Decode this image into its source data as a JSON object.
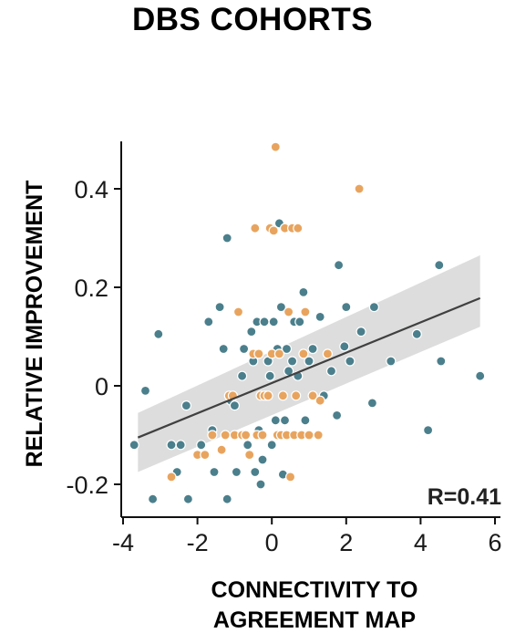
{
  "chart_data": {
    "type": "scatter",
    "title": "DBS COHORTS",
    "xlabel_lines": [
      "CONNECTIVITY TO",
      "AGREEMENT MAP"
    ],
    "ylabel": "RELATIVE IMPROVEMENT",
    "annotation": "R=0.41",
    "xlim": [
      -4,
      6
    ],
    "ylim": [
      -0.25,
      0.5
    ],
    "xticks": [
      -4,
      -2,
      0,
      2,
      4,
      6
    ],
    "yticks": [
      -0.2,
      0,
      0.2,
      0.4
    ],
    "ytick_labels": [
      "-0.2",
      "0",
      "0.2",
      "0.4"
    ],
    "grid": false,
    "colors": {
      "teal": "#4b7f8c",
      "orange": "#e8a45e",
      "fit_line": "#404040",
      "band": "#d9d9d9"
    },
    "fit": {
      "x": [
        -3.6,
        5.6
      ],
      "y": [
        -0.105,
        0.178
      ],
      "band_upper": [
        -0.055,
        0.265
      ],
      "band_lower": [
        -0.175,
        0.12
      ]
    },
    "series": [
      {
        "color": "teal",
        "points": [
          [
            -3.7,
            -0.12
          ],
          [
            -3.4,
            -0.01
          ],
          [
            -3.2,
            -0.23
          ],
          [
            -3.05,
            0.105
          ],
          [
            -2.7,
            -0.12
          ],
          [
            -2.55,
            -0.175
          ],
          [
            -2.45,
            -0.12
          ],
          [
            -2.3,
            -0.04
          ],
          [
            -2.25,
            -0.23
          ],
          [
            -1.9,
            -0.12
          ],
          [
            -1.7,
            0.13
          ],
          [
            -1.6,
            -0.09
          ],
          [
            -1.55,
            -0.175
          ],
          [
            -1.4,
            0.16
          ],
          [
            -1.3,
            0.075
          ],
          [
            -1.2,
            -0.23
          ],
          [
            -1.2,
            0.3
          ],
          [
            -1.1,
            -0.03
          ],
          [
            -1.0,
            -0.04
          ],
          [
            -0.95,
            -0.175
          ],
          [
            -0.8,
            0.02
          ],
          [
            -0.75,
            0.075
          ],
          [
            -0.65,
            -0.12
          ],
          [
            -0.55,
            0.11
          ],
          [
            -0.5,
            0.05
          ],
          [
            -0.45,
            -0.175
          ],
          [
            -0.4,
            0.13
          ],
          [
            -0.35,
            -0.09
          ],
          [
            -0.3,
            -0.2
          ],
          [
            -0.25,
            -0.15
          ],
          [
            -0.2,
            0.13
          ],
          [
            -0.15,
            -0.02
          ],
          [
            -0.1,
            0.05
          ],
          [
            -0.05,
            0.02
          ],
          [
            0.0,
            -0.12
          ],
          [
            0.05,
            0.13
          ],
          [
            0.1,
            -0.07
          ],
          [
            0.15,
            0.075
          ],
          [
            0.2,
            0.33
          ],
          [
            0.25,
            0.16
          ],
          [
            0.3,
            -0.18
          ],
          [
            0.35,
            -0.07
          ],
          [
            0.4,
            0.075
          ],
          [
            0.45,
            0.03
          ],
          [
            0.55,
            0.05
          ],
          [
            0.6,
            0.13
          ],
          [
            0.7,
            0.02
          ],
          [
            0.75,
            0.13
          ],
          [
            0.85,
            0.19
          ],
          [
            0.9,
            -0.07
          ],
          [
            1.0,
            0.05
          ],
          [
            1.1,
            0.075
          ],
          [
            1.3,
            0.14
          ],
          [
            1.4,
            -0.02
          ],
          [
            1.6,
            0.03
          ],
          [
            1.75,
            -0.06
          ],
          [
            1.8,
            0.245
          ],
          [
            1.95,
            0.08
          ],
          [
            2.0,
            0.16
          ],
          [
            2.1,
            0.05
          ],
          [
            2.4,
            0.11
          ],
          [
            2.7,
            -0.035
          ],
          [
            2.75,
            0.16
          ],
          [
            3.2,
            0.05
          ],
          [
            3.9,
            0.105
          ],
          [
            4.2,
            -0.09
          ],
          [
            4.5,
            0.245
          ],
          [
            4.55,
            0.05
          ],
          [
            5.6,
            0.02
          ]
        ]
      },
      {
        "color": "orange",
        "points": [
          [
            -2.7,
            -0.185
          ],
          [
            -2.0,
            -0.14
          ],
          [
            -1.8,
            -0.14
          ],
          [
            -1.6,
            -0.1
          ],
          [
            -1.35,
            -0.13
          ],
          [
            -1.25,
            -0.1
          ],
          [
            -1.15,
            -0.02
          ],
          [
            -1.05,
            -0.02
          ],
          [
            -1.0,
            -0.1
          ],
          [
            -0.9,
            0.15
          ],
          [
            -0.8,
            -0.1
          ],
          [
            -0.7,
            -0.1
          ],
          [
            -0.6,
            -0.14
          ],
          [
            -0.5,
            0.065
          ],
          [
            -0.45,
            0.32
          ],
          [
            -0.4,
            -0.1
          ],
          [
            -0.35,
            0.065
          ],
          [
            -0.3,
            -0.02
          ],
          [
            -0.25,
            -0.1
          ],
          [
            -0.2,
            -0.02
          ],
          [
            -0.1,
            -0.02
          ],
          [
            -0.05,
            0.32
          ],
          [
            0.0,
            0.065
          ],
          [
            0.05,
            0.315
          ],
          [
            0.1,
            0.485
          ],
          [
            0.15,
            -0.1
          ],
          [
            0.2,
            0.065
          ],
          [
            0.25,
            -0.1
          ],
          [
            0.3,
            -0.02
          ],
          [
            0.35,
            0.32
          ],
          [
            0.4,
            -0.1
          ],
          [
            0.45,
            0.15
          ],
          [
            0.5,
            -0.185
          ],
          [
            0.55,
            0.32
          ],
          [
            0.6,
            -0.1
          ],
          [
            0.65,
            -0.02
          ],
          [
            0.7,
            0.32
          ],
          [
            0.8,
            -0.1
          ],
          [
            0.85,
            0.065
          ],
          [
            0.9,
            0.15
          ],
          [
            1.0,
            -0.1
          ],
          [
            1.1,
            -0.02
          ],
          [
            1.25,
            -0.1
          ],
          [
            1.3,
            -0.03
          ],
          [
            1.5,
            0.065
          ],
          [
            2.35,
            0.4
          ]
        ]
      }
    ]
  }
}
